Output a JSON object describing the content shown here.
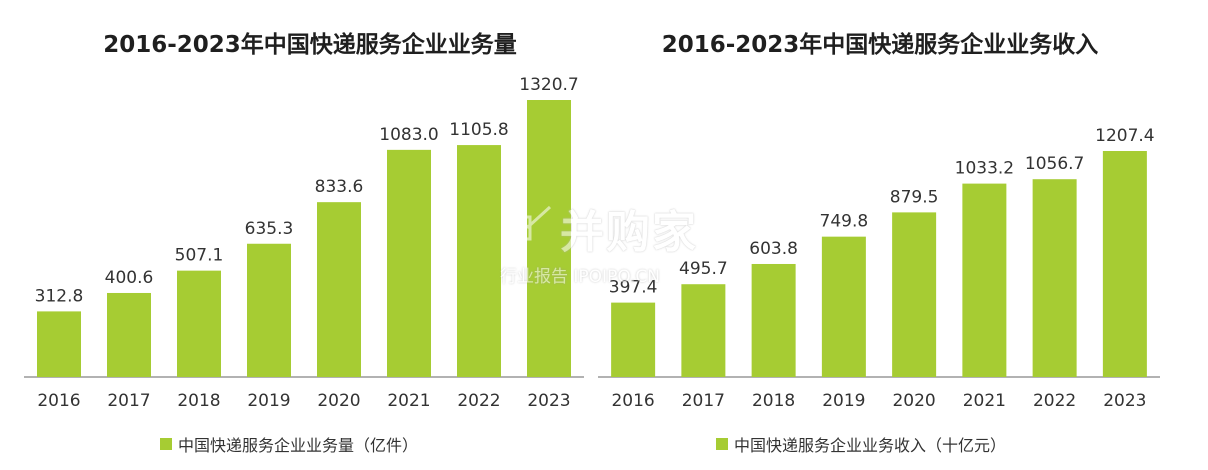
{
  "chart_data": [
    {
      "type": "bar",
      "title": "2016-2023年中国快递服务企业业务量",
      "categories": [
        "2016",
        "2017",
        "2018",
        "2019",
        "2020",
        "2021",
        "2022",
        "2023"
      ],
      "series": [
        {
          "name": "中国快递服务企业业务量（亿件）",
          "values": [
            312.8,
            400.6,
            507.1,
            635.3,
            833.6,
            1083.0,
            1105.8,
            1320.7
          ]
        }
      ],
      "value_labels": [
        "312.8",
        "400.6",
        "507.1",
        "635.3",
        "833.6",
        "1083.0",
        "1105.8",
        "1320.7"
      ],
      "ylim": [
        0,
        1320.7
      ],
      "grid": false,
      "legend_position": "bottom",
      "color": "#a6cc33"
    },
    {
      "type": "bar",
      "title": "2016-2023年中国快递服务企业业务收入",
      "categories": [
        "2016",
        "2017",
        "2018",
        "2019",
        "2020",
        "2021",
        "2022",
        "2023"
      ],
      "series": [
        {
          "name": "中国快递服务企业业务收入（十亿元）",
          "values": [
            397.4,
            495.7,
            603.8,
            749.8,
            879.5,
            1033.2,
            1056.7,
            1207.4
          ]
        }
      ],
      "value_labels": [
        "397.4",
        "495.7",
        "603.8",
        "749.8",
        "879.5",
        "1033.2",
        "1056.7",
        "1207.4"
      ],
      "ylim": [
        0,
        1207.4
      ],
      "grid": false,
      "legend_position": "bottom",
      "color": "#a6cc33"
    }
  ],
  "watermark": {
    "main": "并购家",
    "sub": "行业报告 IPOIPO.CN",
    "icon": "bar-chart-icon"
  }
}
